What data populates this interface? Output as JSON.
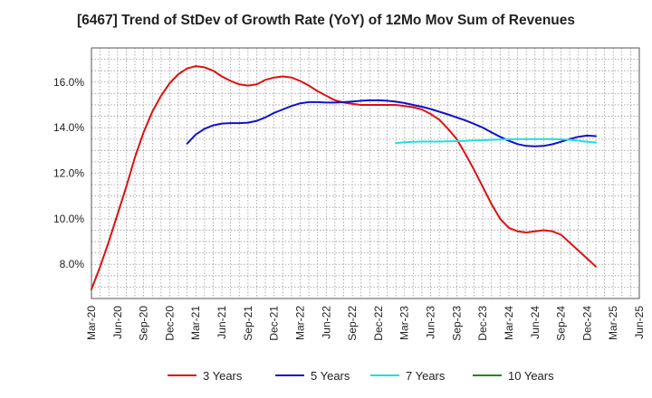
{
  "chart_data": {
    "type": "line",
    "title": "[6467]  Trend of StDev of Growth Rate (YoY) of 12Mo Mov Sum of Revenues",
    "xlabel": "",
    "ylabel": "",
    "ylim": [
      6.5,
      17.5
    ],
    "yticks": [
      8.0,
      10.0,
      12.0,
      14.0,
      16.0
    ],
    "ytick_labels": [
      "8.0%",
      "10.0%",
      "12.0%",
      "14.0%",
      "16.0%"
    ],
    "xtick_labels": [
      "Mar-20",
      "Jun-20",
      "Sep-20",
      "Dec-20",
      "Mar-21",
      "Jun-21",
      "Sep-21",
      "Dec-21",
      "Mar-22",
      "Jun-22",
      "Sep-22",
      "Dec-22",
      "Mar-23",
      "Jun-23",
      "Sep-23",
      "Dec-23",
      "Mar-24",
      "Jun-24",
      "Sep-24",
      "Dec-24",
      "Mar-25",
      "Jun-25"
    ],
    "grid": true,
    "legend_position": "bottom",
    "series": [
      {
        "name": "3 Years",
        "color": "#dd1111",
        "start_month": 0,
        "values": [
          6.9,
          7.9,
          9.0,
          10.2,
          11.4,
          12.7,
          13.8,
          14.7,
          15.4,
          15.95,
          16.35,
          16.6,
          16.7,
          16.65,
          16.5,
          16.25,
          16.05,
          15.9,
          15.85,
          15.9,
          16.1,
          16.2,
          16.25,
          16.2,
          16.05,
          15.85,
          15.6,
          15.4,
          15.2,
          15.1,
          15.05,
          15.0,
          15.0,
          15.0,
          15.0,
          15.0,
          14.95,
          14.9,
          14.8,
          14.6,
          14.35,
          13.95,
          13.5,
          12.85,
          12.15,
          11.4,
          10.65,
          10.0,
          9.6,
          9.45,
          9.4,
          9.45,
          9.5,
          9.45,
          9.3,
          8.95,
          8.6,
          8.25,
          7.9
        ]
      },
      {
        "name": "5 Years",
        "color": "#1111cc",
        "start_month": 11,
        "values": [
          13.3,
          13.7,
          13.95,
          14.1,
          14.18,
          14.2,
          14.2,
          14.22,
          14.3,
          14.45,
          14.65,
          14.8,
          14.95,
          15.07,
          15.12,
          15.12,
          15.1,
          15.1,
          15.12,
          15.15,
          15.18,
          15.2,
          15.2,
          15.18,
          15.14,
          15.08,
          15.0,
          14.92,
          14.82,
          14.7,
          14.58,
          14.45,
          14.32,
          14.17,
          14.0,
          13.8,
          13.6,
          13.42,
          13.28,
          13.2,
          13.18,
          13.2,
          13.27,
          13.38,
          13.5,
          13.6,
          13.65,
          13.63
        ]
      },
      {
        "name": "7 Years",
        "color": "#22dddd",
        "start_month": 35,
        "values": [
          13.32,
          13.36,
          13.38,
          13.39,
          13.39,
          13.39,
          13.4,
          13.41,
          13.42,
          13.44,
          13.45,
          13.47,
          13.48,
          13.49,
          13.5,
          13.5,
          13.5,
          13.5,
          13.5,
          13.49,
          13.47,
          13.43,
          13.38,
          13.35
        ]
      },
      {
        "name": "10 Years",
        "color": "#228822",
        "start_month": 0,
        "values": []
      }
    ]
  }
}
